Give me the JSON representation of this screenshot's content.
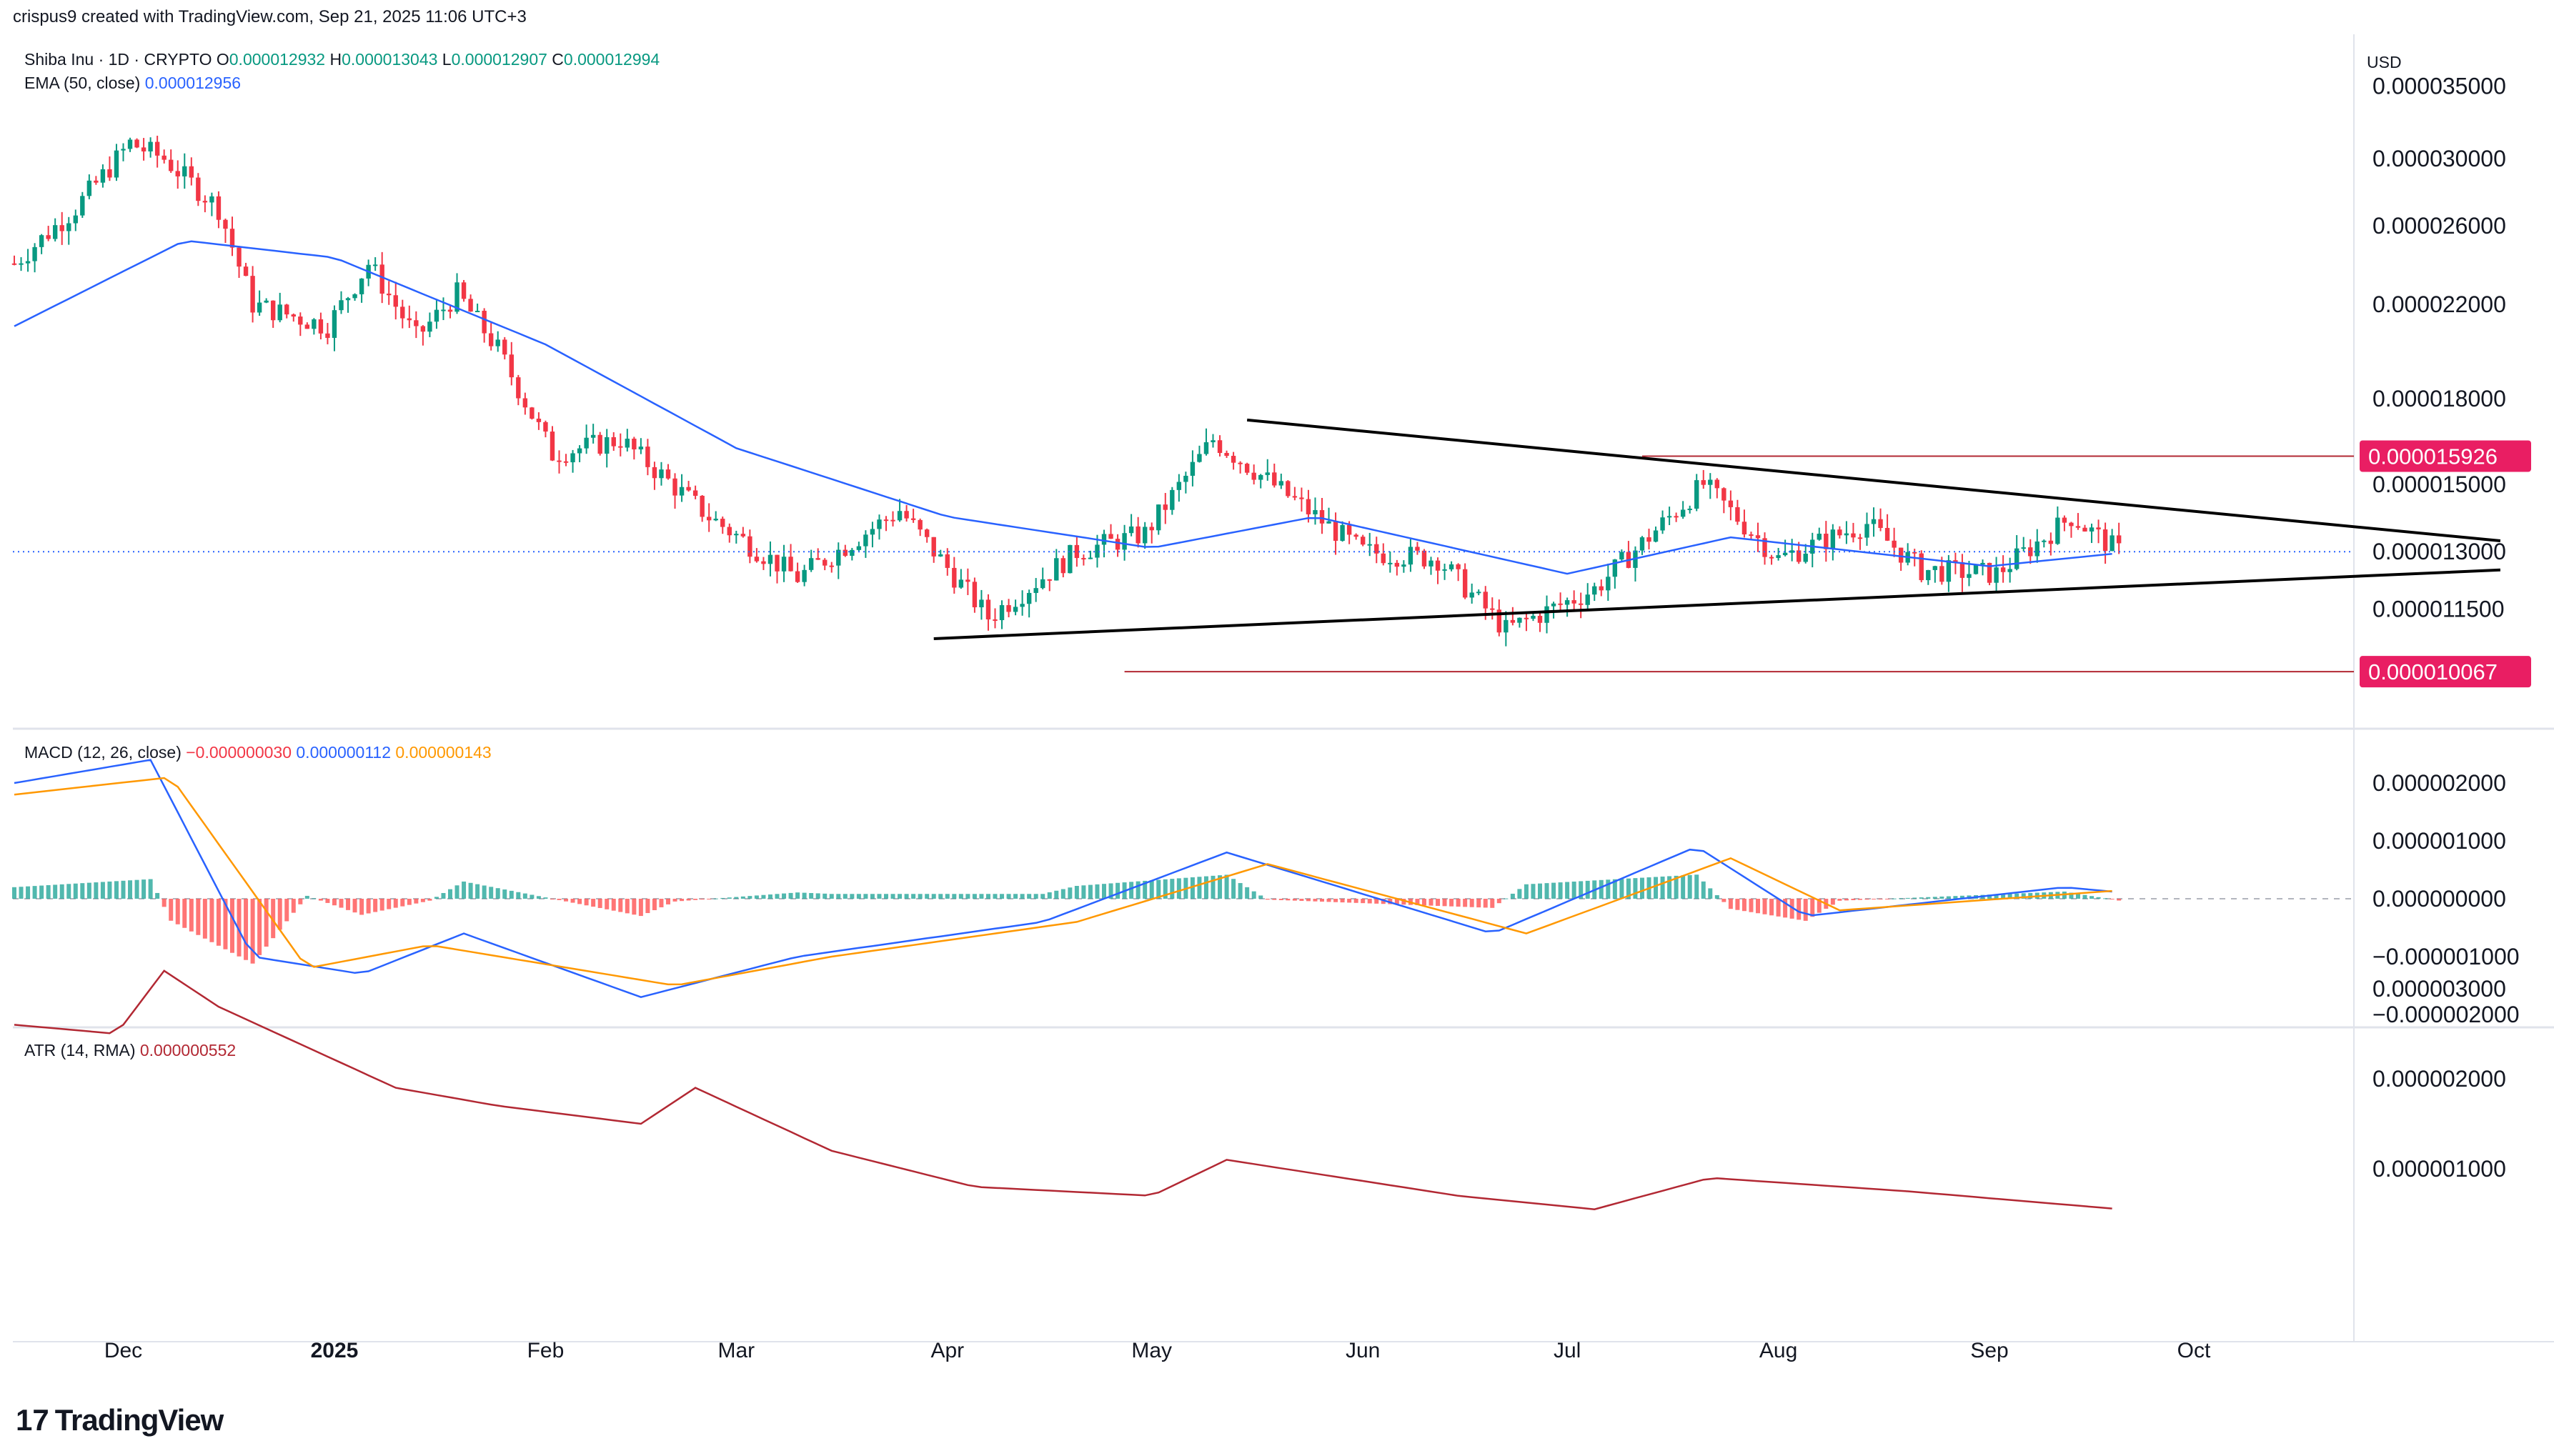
{
  "header": {
    "attribution": "crispus9 created with TradingView.com, Sep 21, 2025 11:06 UTC+3",
    "currency": "USD"
  },
  "symbol_legend": {
    "title": "Shiba Inu · 1D · CRYPTO",
    "o_label": "O",
    "o_value": "0.000012932",
    "h_label": "H",
    "h_value": "0.000013043",
    "l_label": "L",
    "l_value": "0.000012907",
    "c_label": "C",
    "c_value": "0.000012994"
  },
  "ema_legend": {
    "label": "EMA (50, close)",
    "value": "0.000012956"
  },
  "macd_legend": {
    "label": "MACD (12, 26, close)",
    "hist": "−0.000000030",
    "macd": "0.000000112",
    "signal": "0.000000143"
  },
  "atr_legend": {
    "label": "ATR (14, RMA)",
    "value": "0.000000552"
  },
  "branding": {
    "logo_text": "TradingView",
    "logo_mark": "17"
  },
  "colors": {
    "up": "#089981",
    "down": "#f23645",
    "ema": "#2962ff",
    "signal": "#ff9800",
    "atr": "#b22833",
    "marker": "#e91e63"
  },
  "chart_data": [
    {
      "type": "candlestick",
      "title": "Shiba Inu · 1D · CRYPTO",
      "currency": "USD",
      "x_labels": [
        "Dec",
        "2025",
        "Feb",
        "Mar",
        "Apr",
        "May",
        "Jun",
        "Jul",
        "Aug",
        "Sep",
        "Oct"
      ],
      "y_ticks": [
        "0.000035000",
        "0.000030000",
        "0.000026000",
        "0.000022000",
        "0.000018000",
        "0.000015000",
        "0.000013000",
        "0.000011500"
      ],
      "price_markers": [
        "0.000015926",
        "0.000010067"
      ],
      "last_price": 1.2994e-05,
      "anchors": [
        {
          "date": "2024-11-15",
          "price": 2.4e-05
        },
        {
          "date": "2024-11-24",
          "price": 2.7e-05
        },
        {
          "date": "2024-12-02",
          "price": 3.1e-05
        },
        {
          "date": "2024-12-07",
          "price": 3e-05
        },
        {
          "date": "2024-12-15",
          "price": 2.7e-05
        },
        {
          "date": "2024-12-20",
          "price": 2.2e-05
        },
        {
          "date": "2024-12-31",
          "price": 2.1e-05
        },
        {
          "date": "2025-01-06",
          "price": 2.4e-05
        },
        {
          "date": "2025-01-13",
          "price": 2.05e-05
        },
        {
          "date": "2025-01-19",
          "price": 2.25e-05
        },
        {
          "date": "2025-01-25",
          "price": 2e-05
        },
        {
          "date": "2025-02-02",
          "price": 1.6e-05
        },
        {
          "date": "2025-02-12",
          "price": 1.65e-05
        },
        {
          "date": "2025-02-25",
          "price": 1.4e-05
        },
        {
          "date": "2025-03-10",
          "price": 1.23e-05
        },
        {
          "date": "2025-03-25",
          "price": 1.42e-05
        },
        {
          "date": "2025-04-07",
          "price": 1.13e-05
        },
        {
          "date": "2025-04-20",
          "price": 1.3e-05
        },
        {
          "date": "2025-04-30",
          "price": 1.35e-05
        },
        {
          "date": "2025-05-10",
          "price": 1.65e-05
        },
        {
          "date": "2025-05-20",
          "price": 1.48e-05
        },
        {
          "date": "2025-06-01",
          "price": 1.3e-05
        },
        {
          "date": "2025-06-12",
          "price": 1.28e-05
        },
        {
          "date": "2025-06-22",
          "price": 1.1e-05
        },
        {
          "date": "2025-07-05",
          "price": 1.2e-05
        },
        {
          "date": "2025-07-21",
          "price": 1.5e-05
        },
        {
          "date": "2025-08-01",
          "price": 1.28e-05
        },
        {
          "date": "2025-08-14",
          "price": 1.38e-05
        },
        {
          "date": "2025-08-22",
          "price": 1.25e-05
        },
        {
          "date": "2025-09-02",
          "price": 1.24e-05
        },
        {
          "date": "2025-09-13",
          "price": 1.4e-05
        },
        {
          "date": "2025-09-20",
          "price": 1.3e-05
        }
      ],
      "ema_anchors": [
        {
          "date": "2024-11-15",
          "price": 2.1e-05
        },
        {
          "date": "2024-12-10",
          "price": 2.52e-05
        },
        {
          "date": "2025-01-01",
          "price": 2.43e-05
        },
        {
          "date": "2025-02-01",
          "price": 2.02e-05
        },
        {
          "date": "2025-03-01",
          "price": 1.62e-05
        },
        {
          "date": "2025-04-01",
          "price": 1.4e-05
        },
        {
          "date": "2025-05-01",
          "price": 1.31e-05
        },
        {
          "date": "2025-05-25",
          "price": 1.4e-05
        },
        {
          "date": "2025-07-01",
          "price": 1.24e-05
        },
        {
          "date": "2025-07-25",
          "price": 1.34e-05
        },
        {
          "date": "2025-09-01",
          "price": 1.26e-05
        },
        {
          "date": "2025-09-20",
          "price": 1.2956e-05
        }
      ],
      "trendlines": [
        {
          "label": "upper",
          "from": {
            "date": "2025-05-15",
            "price": 1.72e-05
          },
          "to": {
            "date": "2025-11-15",
            "price": 1.33e-05
          }
        },
        {
          "label": "lower",
          "from": {
            "date": "2025-03-30",
            "price": 1.08e-05
          },
          "to": {
            "date": "2025-11-15",
            "price": 1.25e-05
          }
        }
      ],
      "horizontal_levels": [
        {
          "price": 1.5926e-05,
          "from": "2025-07-12"
        },
        {
          "price": 1.0067e-05,
          "from": "2025-04-27"
        }
      ]
    },
    {
      "type": "line",
      "title": "MACD (12, 26, close)",
      "y_ticks": [
        "0.000002000",
        "0.000001000",
        "0.000000000",
        "−0.000001000",
        "−0.000002000"
      ],
      "series": [
        {
          "name": "MACD",
          "values": [
            {
              "date": "2024-11-15",
              "v": 2e-06
            },
            {
              "date": "2024-12-05",
              "v": 2.4e-06
            },
            {
              "date": "2024-12-20",
              "v": -1e-06
            },
            {
              "date": "2025-01-05",
              "v": -1.3e-06
            },
            {
              "date": "2025-01-20",
              "v": -6e-07
            },
            {
              "date": "2025-02-15",
              "v": -1.7e-06
            },
            {
              "date": "2025-03-10",
              "v": -1e-06
            },
            {
              "date": "2025-04-15",
              "v": -4e-07
            },
            {
              "date": "2025-05-12",
              "v": 8e-07
            },
            {
              "date": "2025-06-20",
              "v": -6e-07
            },
            {
              "date": "2025-07-20",
              "v": 9e-07
            },
            {
              "date": "2025-08-05",
              "v": -3e-07
            },
            {
              "date": "2025-09-12",
              "v": 2e-07
            },
            {
              "date": "2025-09-20",
              "v": 1.12e-07
            }
          ]
        },
        {
          "name": "Signal",
          "values": [
            {
              "date": "2024-11-15",
              "v": 1.8e-06
            },
            {
              "date": "2024-12-08",
              "v": 2.1e-06
            },
            {
              "date": "2024-12-28",
              "v": -1.2e-06
            },
            {
              "date": "2025-01-15",
              "v": -8e-07
            },
            {
              "date": "2025-02-20",
              "v": -1.5e-06
            },
            {
              "date": "2025-03-15",
              "v": -1e-06
            },
            {
              "date": "2025-04-20",
              "v": -4e-07
            },
            {
              "date": "2025-05-18",
              "v": 6e-07
            },
            {
              "date": "2025-06-25",
              "v": -6e-07
            },
            {
              "date": "2025-07-25",
              "v": 7e-07
            },
            {
              "date": "2025-08-10",
              "v": -2e-07
            },
            {
              "date": "2025-09-20",
              "v": 1.43e-07
            }
          ]
        }
      ],
      "histogram_last": -3e-08
    },
    {
      "type": "line",
      "title": "ATR (14, RMA)",
      "y_ticks": [
        "0.000003000",
        "0.000002000",
        "0.000001000"
      ],
      "series": [
        {
          "name": "ATR",
          "values": [
            {
              "date": "2024-11-15",
              "v": 2.6e-06
            },
            {
              "date": "2024-11-30",
              "v": 2.5e-06
            },
            {
              "date": "2024-12-07",
              "v": 3.2e-06
            },
            {
              "date": "2024-12-15",
              "v": 2.8e-06
            },
            {
              "date": "2025-01-10",
              "v": 1.9e-06
            },
            {
              "date": "2025-01-25",
              "v": 1.7e-06
            },
            {
              "date": "2025-02-15",
              "v": 1.5e-06
            },
            {
              "date": "2025-02-23",
              "v": 1.9e-06
            },
            {
              "date": "2025-03-15",
              "v": 1.2e-06
            },
            {
              "date": "2025-04-05",
              "v": 8e-07
            },
            {
              "date": "2025-05-01",
              "v": 7e-07
            },
            {
              "date": "2025-05-12",
              "v": 1.1e-06
            },
            {
              "date": "2025-06-15",
              "v": 7e-07
            },
            {
              "date": "2025-07-05",
              "v": 5.5e-07
            },
            {
              "date": "2025-07-22",
              "v": 9e-07
            },
            {
              "date": "2025-08-20",
              "v": 7.5e-07
            },
            {
              "date": "2025-09-20",
              "v": 5.52e-07
            }
          ]
        }
      ]
    }
  ]
}
